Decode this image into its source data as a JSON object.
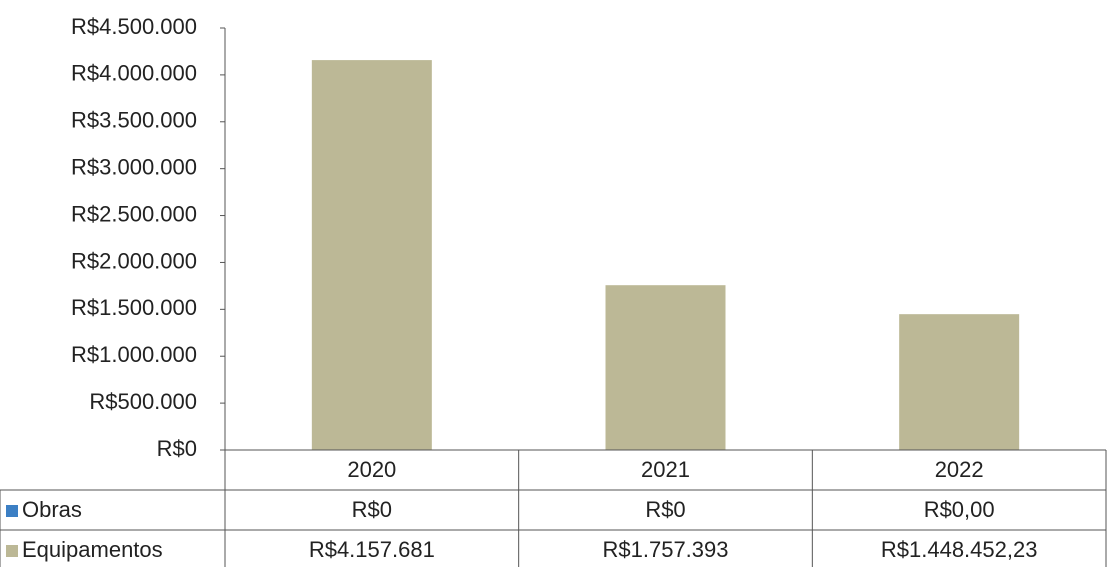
{
  "chart_data": {
    "type": "bar",
    "categories": [
      "2020",
      "2021",
      "2022"
    ],
    "series": [
      {
        "name": "Obras",
        "color": "#3c7fc4",
        "values": [
          0,
          0,
          0
        ],
        "value_labels": [
          "R$0",
          "R$0",
          "R$0,00"
        ]
      },
      {
        "name": "Equipamentos",
        "color": "#bcb896",
        "values": [
          4157681,
          1757393,
          1448452.23
        ],
        "value_labels": [
          "R$4.157.681",
          "R$1.757.393",
          "R$1.448.452,23"
        ]
      }
    ],
    "ylim": [
      0,
      4500000
    ],
    "yticks": [
      {
        "value": 0,
        "label": "R$0"
      },
      {
        "value": 500000,
        "label": "R$500.000"
      },
      {
        "value": 1000000,
        "label": "R$1.000.000"
      },
      {
        "value": 1500000,
        "label": "R$1.500.000"
      },
      {
        "value": 2000000,
        "label": "R$2.000.000"
      },
      {
        "value": 2500000,
        "label": "R$2.500.000"
      },
      {
        "value": 3000000,
        "label": "R$3.000.000"
      },
      {
        "value": 3500000,
        "label": "R$3.500.000"
      },
      {
        "value": 4000000,
        "label": "R$4.000.000"
      },
      {
        "value": 4500000,
        "label": "R$4.500.000"
      }
    ],
    "stacked": true,
    "data_table": true
  }
}
